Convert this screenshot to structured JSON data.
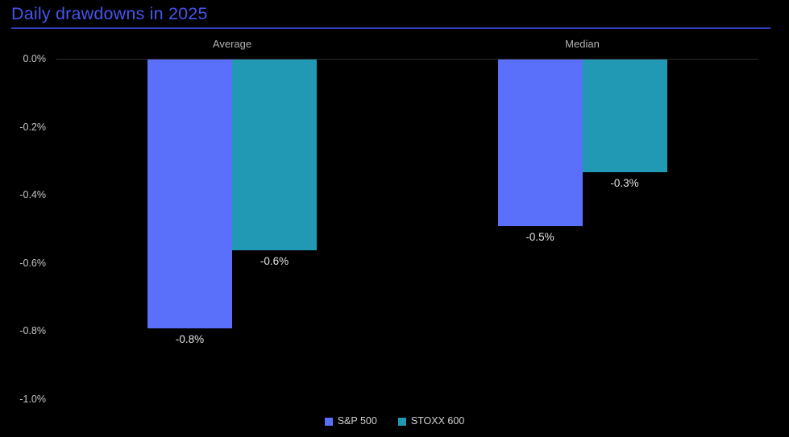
{
  "title": "Daily drawdowns in 2025",
  "colors": {
    "background": "#000000",
    "title": "#4754ee",
    "title_underline": "#323cc0",
    "axis_line": "#2e2e2e",
    "tick_label": "#c6c6c6",
    "group_label": "#b3b3b3",
    "value_label": "#e3e3e3",
    "legend_label": "#d0d0d0",
    "series": {
      "sp500": "#5a6ffa",
      "stoxx600": "#2199b4"
    }
  },
  "chart_data": {
    "type": "bar",
    "title": "Daily drawdowns in 2025",
    "orientation": "vertical",
    "groups": [
      "Average",
      "Median"
    ],
    "series": [
      {
        "name": "S&P 500",
        "key": "sp500",
        "values": [
          -0.79,
          -0.49
        ],
        "data_labels": [
          "-0.8%",
          "-0.5%"
        ]
      },
      {
        "name": "STOXX 600",
        "key": "stoxx600",
        "values": [
          -0.56,
          -0.33
        ],
        "data_labels": [
          "-0.6%",
          "-0.3%"
        ]
      }
    ],
    "y_ticks": [
      {
        "label": "0.0%",
        "value": 0
      },
      {
        "label": "-0.2%",
        "value": -0.2
      },
      {
        "label": "-0.4%",
        "value": -0.4
      },
      {
        "label": "-0.6%",
        "value": -0.6
      },
      {
        "label": "-0.8%",
        "value": -0.8
      },
      {
        "label": "-1.0%",
        "value": -1.0
      }
    ],
    "ylim": [
      0,
      -1.0
    ],
    "unit": "%",
    "grid": false,
    "legend_position": "bottom"
  }
}
